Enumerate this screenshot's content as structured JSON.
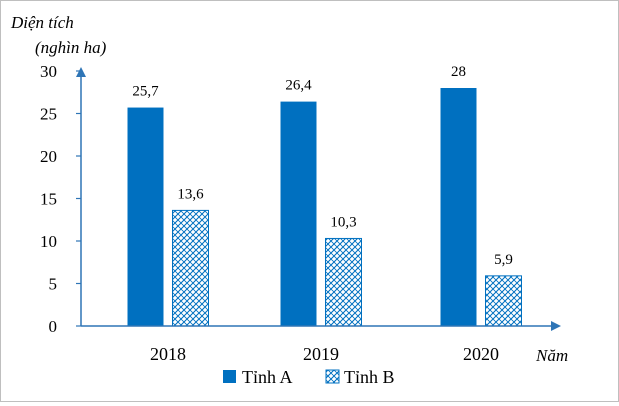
{
  "chart_data": {
    "type": "bar",
    "ylabel_line1": "Diện tích",
    "ylabel_line2": "(nghìn ha)",
    "xlabel": "Năm",
    "categories": [
      "2018",
      "2019",
      "2020"
    ],
    "series": [
      {
        "name": "Tỉnh A",
        "values": [
          25.7,
          26.4,
          28
        ],
        "labels": [
          "25,7",
          "26,4",
          "28"
        ],
        "color": "#0070c0",
        "pattern": "solid"
      },
      {
        "name": "Tỉnh B",
        "values": [
          13.6,
          10.3,
          5.9
        ],
        "labels": [
          "13,6",
          "10,3",
          "5,9"
        ],
        "color": "#0070c0",
        "pattern": "crosshatch"
      }
    ],
    "ylim": [
      0,
      30
    ],
    "yticks": [
      "0",
      "5",
      "10",
      "15",
      "20",
      "25",
      "30"
    ],
    "grid": false,
    "legend_position": "bottom",
    "axis_color": "#2e75b6"
  }
}
